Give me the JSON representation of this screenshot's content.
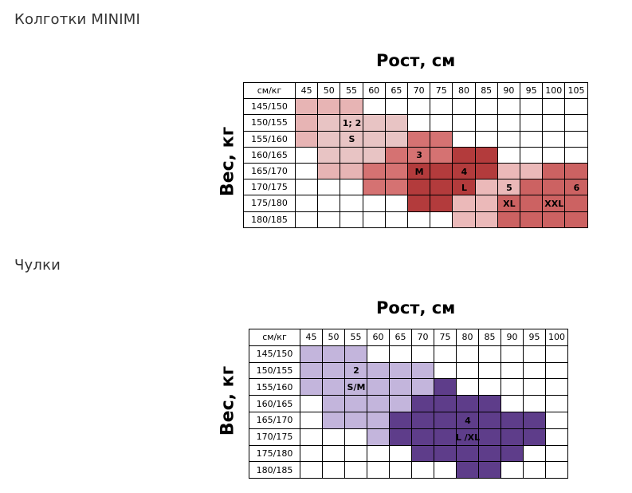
{
  "page": {
    "tights_title": "Колготки MINIMI",
    "stockings_title": "Чулки"
  },
  "chart_data": [
    {
      "type": "table",
      "title": "Колготки MINIMI",
      "xlabel": "Рост, см",
      "ylabel": "Вес, кг",
      "corner": "см/кг",
      "columns": [
        "45",
        "50",
        "55",
        "60",
        "65",
        "70",
        "75",
        "80",
        "85",
        "90",
        "95",
        "100",
        "105"
      ],
      "rows": [
        "145/150",
        "150/155",
        "155/160",
        "160/165",
        "165/170",
        "170/175",
        "175/180",
        "180/185"
      ],
      "size_colors": {
        "1": "#e7b4b4",
        "2": "#e8c4c4",
        "3": "#d57272",
        "4": "#b33b3c",
        "5": "#ebb9b9",
        "6": "#cc6262"
      },
      "grid": [
        [
          "1",
          "1",
          "1",
          "",
          "",
          "",
          "",
          "",
          "",
          "",
          "",
          "",
          ""
        ],
        [
          "1",
          "2",
          "2",
          "2",
          "2",
          "",
          "",
          "",
          "",
          "",
          "",
          "",
          ""
        ],
        [
          "1",
          "2",
          "2",
          "2",
          "2",
          "3",
          "3",
          "",
          "",
          "",
          "",
          "",
          ""
        ],
        [
          "",
          "2",
          "2",
          "2",
          "3",
          "3",
          "3",
          "4",
          "4",
          "",
          "",
          "",
          ""
        ],
        [
          "",
          "1",
          "1",
          "3",
          "3",
          "4",
          "4",
          "4",
          "4",
          "5",
          "5",
          "6",
          "6"
        ],
        [
          "",
          "",
          "",
          "3",
          "3",
          "4",
          "4",
          "4",
          "5",
          "5",
          "6",
          "6",
          "6"
        ],
        [
          "",
          "",
          "",
          "",
          "",
          "4",
          "4",
          "5",
          "5",
          "6",
          "6",
          "6",
          "6"
        ],
        [
          "",
          "",
          "",
          "",
          "",
          "",
          "",
          "5",
          "5",
          "6",
          "6",
          "6",
          "6"
        ]
      ],
      "labels": [
        {
          "row": 1,
          "col": 2,
          "text": "1; 2"
        },
        {
          "row": 2,
          "col": 2,
          "text": "S"
        },
        {
          "row": 3,
          "col": 5,
          "text": "3"
        },
        {
          "row": 4,
          "col": 5,
          "text": "M"
        },
        {
          "row": 4,
          "col": 7,
          "text": "4"
        },
        {
          "row": 5,
          "col": 7,
          "text": "L"
        },
        {
          "row": 5,
          "col": 9,
          "text": "5"
        },
        {
          "row": 5,
          "col": 12,
          "text": "6"
        },
        {
          "row": 6,
          "col": 9,
          "text": "XL"
        },
        {
          "row": 6,
          "col": 11,
          "text": "XXL"
        }
      ]
    },
    {
      "type": "table",
      "title": "Чулки",
      "xlabel": "Рост, см",
      "ylabel": "Вес, кг",
      "corner": "см/кг",
      "columns": [
        "45",
        "50",
        "55",
        "60",
        "65",
        "70",
        "75",
        "80",
        "85",
        "90",
        "95",
        "100"
      ],
      "rows": [
        "145/150",
        "150/155",
        "155/160",
        "160/165",
        "165/170",
        "170/175",
        "175/180",
        "180/185"
      ],
      "size_colors": {
        "2": "#c3b5dc",
        "4": "#5e3d8a"
      },
      "grid": [
        [
          "2",
          "2",
          "2",
          "",
          "",
          "",
          "",
          "",
          "",
          "",
          "",
          ""
        ],
        [
          "2",
          "2",
          "2",
          "2",
          "2",
          "2",
          "",
          "",
          "",
          "",
          "",
          ""
        ],
        [
          "2",
          "2",
          "2",
          "2",
          "2",
          "2",
          "4",
          "",
          "",
          "",
          "",
          ""
        ],
        [
          "",
          "2",
          "2",
          "2",
          "2",
          "4",
          "4",
          "4",
          "4",
          "",
          "",
          ""
        ],
        [
          "",
          "2",
          "2",
          "2",
          "4",
          "4",
          "4",
          "4",
          "4",
          "4",
          "4",
          ""
        ],
        [
          "",
          "",
          "",
          "2",
          "4",
          "4",
          "4",
          "4",
          "4",
          "4",
          "4",
          ""
        ],
        [
          "",
          "",
          "",
          "",
          "",
          "4",
          "4",
          "4",
          "4",
          "4",
          "",
          ""
        ],
        [
          "",
          "",
          "",
          "",
          "",
          "",
          "",
          "4",
          "4",
          "",
          "",
          ""
        ]
      ],
      "labels": [
        {
          "row": 1,
          "col": 2,
          "text": "2"
        },
        {
          "row": 2,
          "col": 2,
          "text": "S/M"
        },
        {
          "row": 4,
          "col": 7,
          "text": "4"
        },
        {
          "row": 5,
          "col": 7,
          "text": "L /XL"
        }
      ]
    }
  ]
}
